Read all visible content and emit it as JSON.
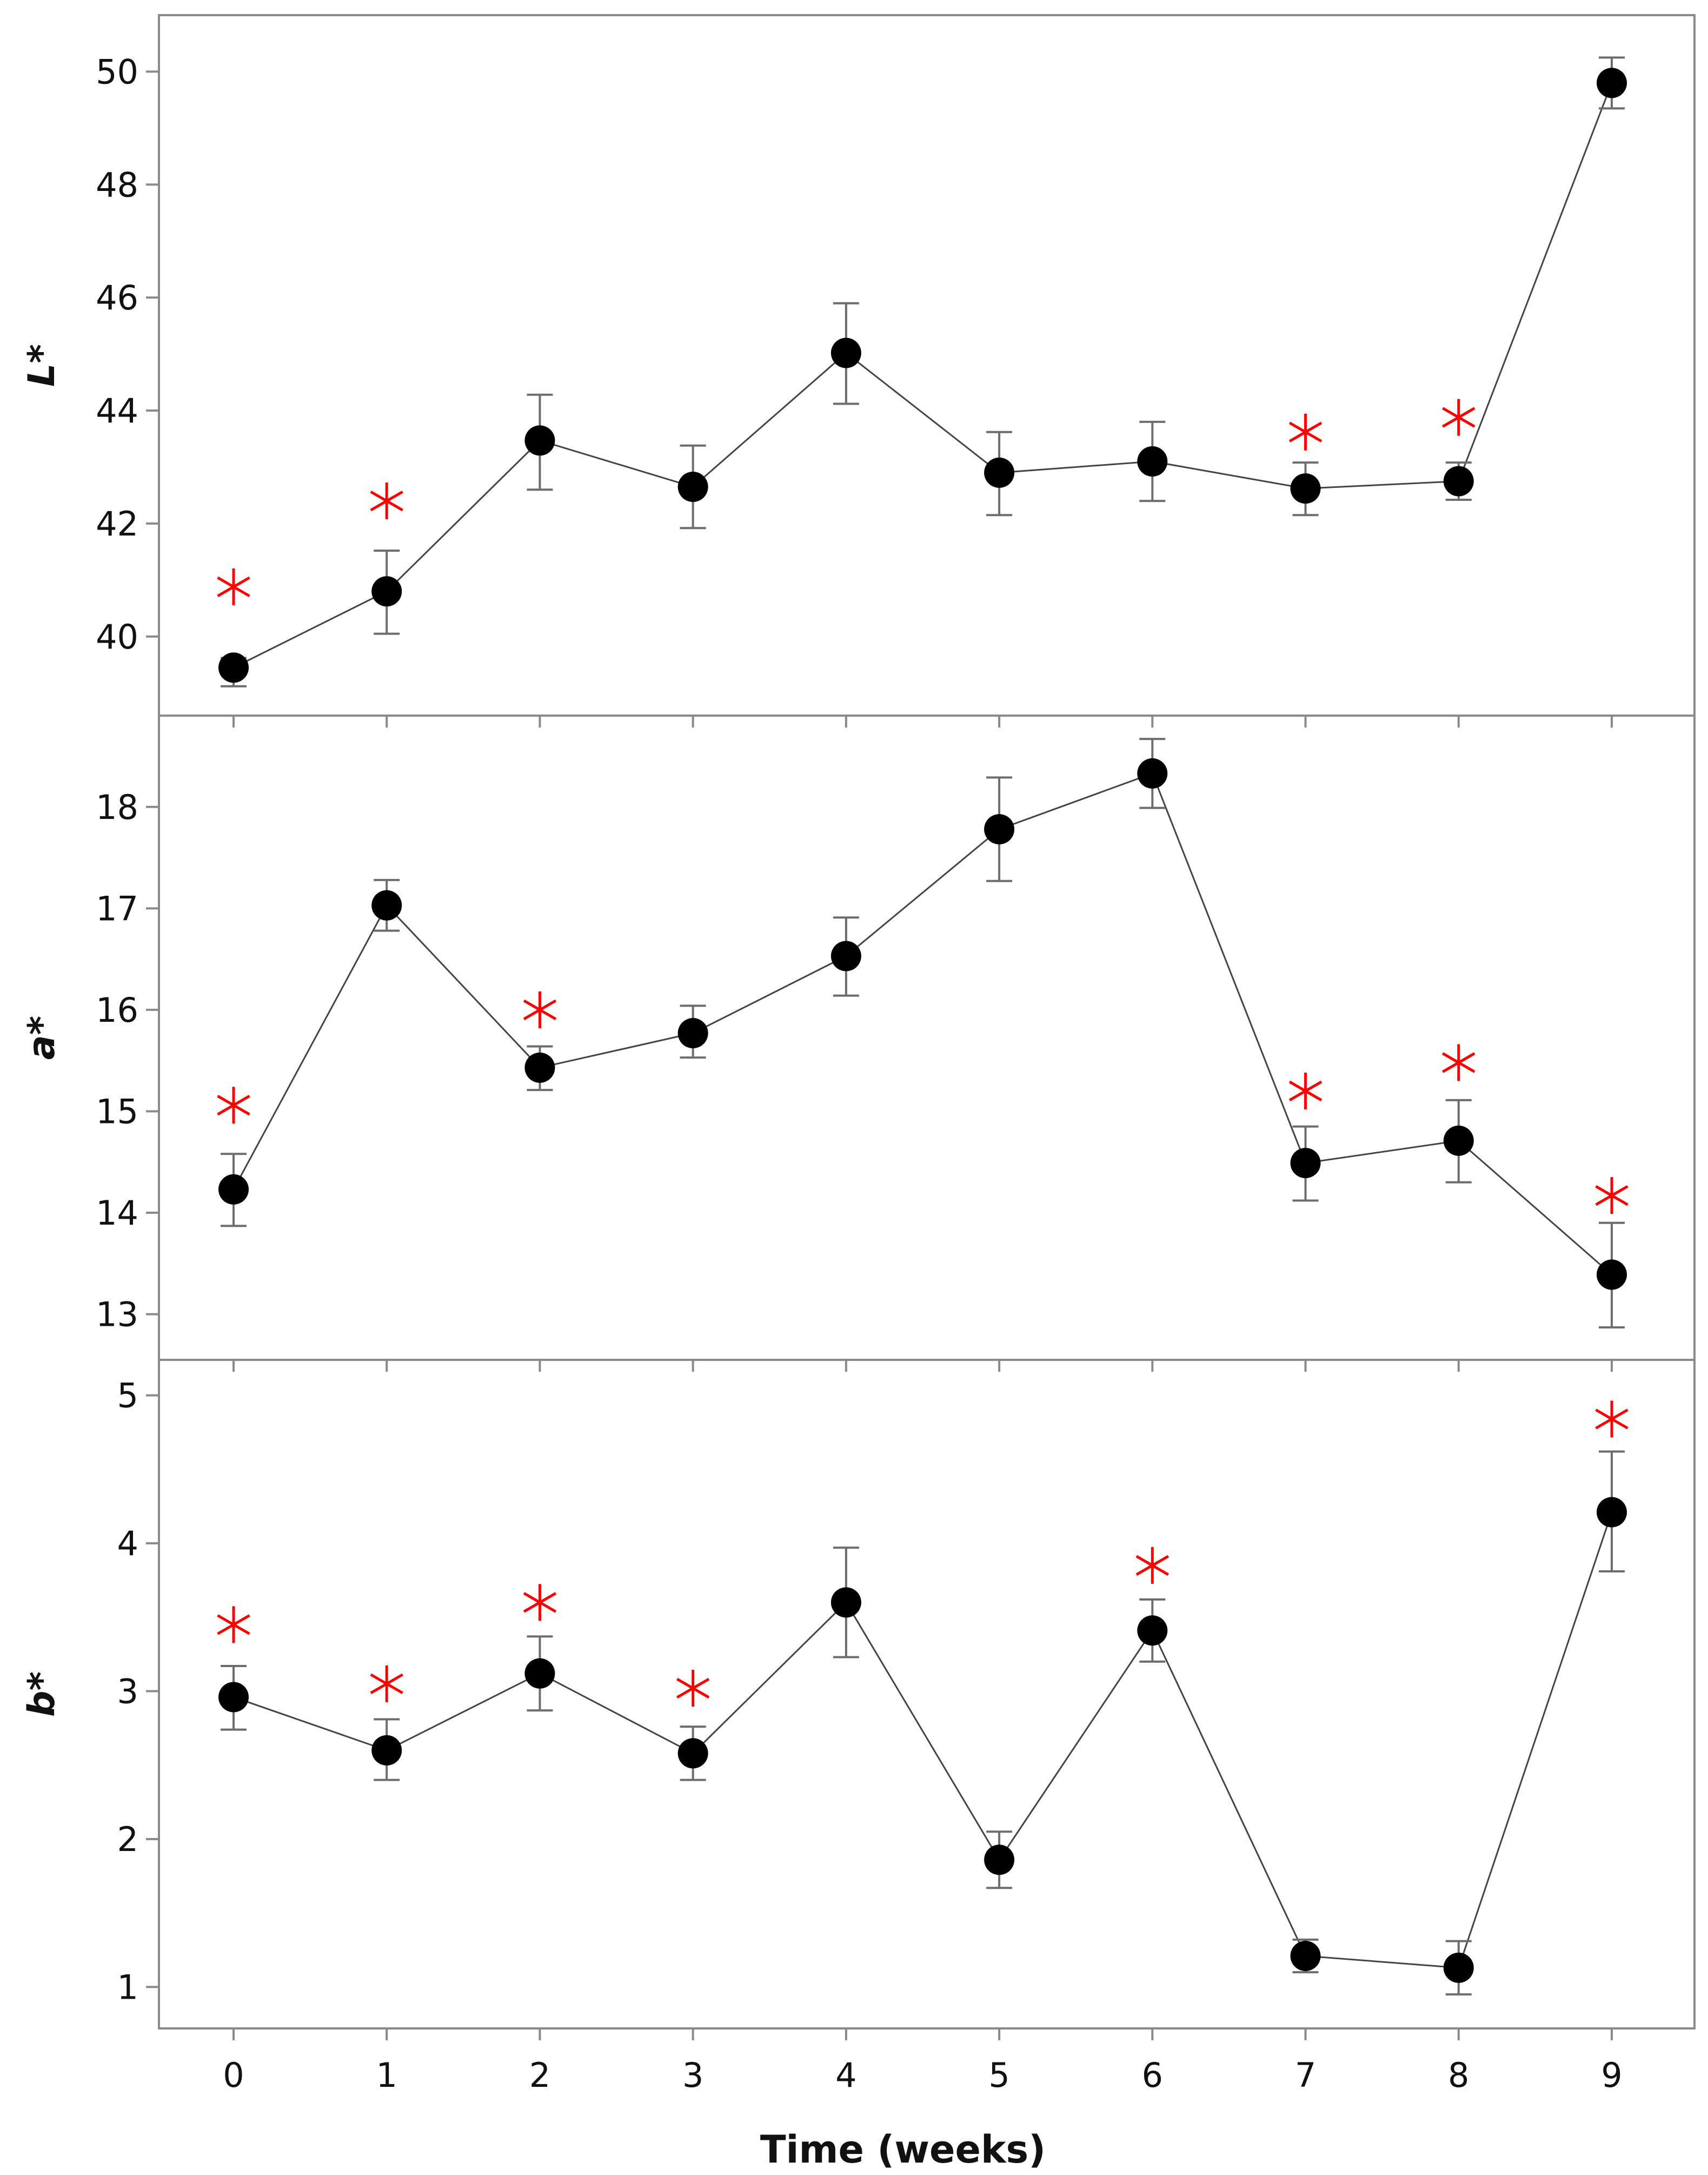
{
  "chart_data": [
    {
      "type": "scatter",
      "ylabel": "L*",
      "xlabel": "Time (weeks)",
      "x": [
        0,
        1,
        2,
        3,
        4,
        5,
        6,
        7,
        8,
        9
      ],
      "ylim": [
        38.6,
        51.0
      ],
      "yticks": [
        40,
        42,
        44,
        46,
        48,
        50
      ],
      "grid": false,
      "series": [
        {
          "values": [
            39.45,
            40.8,
            43.47,
            42.65,
            45.02,
            42.9,
            43.1,
            42.62,
            42.75,
            49.8
          ],
          "error_low": [
            39.12,
            40.05,
            42.6,
            41.92,
            44.12,
            42.15,
            42.4,
            42.15,
            42.42,
            49.35
          ],
          "error_high": [
            39.62,
            41.52,
            44.28,
            43.38,
            45.9,
            43.62,
            43.8,
            43.08,
            43.08,
            50.25
          ]
        }
      ],
      "significance_markers": {
        "symbol": "*",
        "color": "#ff0000",
        "x": [
          0,
          1,
          7,
          8
        ],
        "y": [
          40.88,
          42.4,
          43.62,
          43.88
        ]
      }
    },
    {
      "type": "scatter",
      "ylabel": "a*",
      "xlabel": "Time (weeks)",
      "x": [
        0,
        1,
        2,
        3,
        4,
        5,
        6,
        7,
        8,
        9
      ],
      "ylim": [
        12.55,
        18.9
      ],
      "yticks": [
        13,
        14,
        15,
        16,
        17,
        18
      ],
      "grid": false,
      "series": [
        {
          "values": [
            14.23,
            17.03,
            15.43,
            15.77,
            16.53,
            17.78,
            18.33,
            14.49,
            14.71,
            13.39
          ],
          "error_low": [
            13.87,
            16.78,
            15.21,
            15.53,
            16.14,
            17.27,
            17.99,
            14.12,
            14.3,
            12.87
          ],
          "error_high": [
            14.58,
            17.28,
            15.64,
            16.04,
            16.91,
            18.29,
            18.67,
            14.85,
            15.11,
            13.9
          ]
        }
      ],
      "significance_markers": {
        "symbol": "*",
        "color": "#ff0000",
        "x": [
          0,
          2,
          7,
          8,
          9
        ],
        "y": [
          15.06,
          16.0,
          15.2,
          15.48,
          14.17
        ]
      }
    },
    {
      "type": "scatter",
      "ylabel": "b*",
      "xlabel": "Time (weeks)",
      "x": [
        0,
        1,
        2,
        3,
        4,
        5,
        6,
        7,
        8,
        9
      ],
      "ylim": [
        0.72,
        5.24
      ],
      "yticks": [
        1,
        2,
        3,
        4,
        5
      ],
      "grid": false,
      "series": [
        {
          "values": [
            2.96,
            2.6,
            3.12,
            2.58,
            3.6,
            1.86,
            3.41,
            1.21,
            1.13,
            4.21
          ],
          "error_low": [
            2.74,
            2.4,
            2.87,
            2.4,
            3.23,
            1.67,
            3.2,
            1.1,
            0.95,
            3.81
          ],
          "error_high": [
            3.17,
            2.81,
            3.37,
            2.76,
            3.97,
            2.05,
            3.62,
            1.32,
            1.31,
            4.62
          ]
        }
      ],
      "significance_markers": {
        "symbol": "*",
        "color": "#ff0000",
        "x": [
          0,
          1,
          2,
          3,
          6,
          9
        ],
        "y": [
          3.45,
          3.05,
          3.6,
          3.02,
          3.85,
          4.84
        ]
      }
    }
  ],
  "x_axis": {
    "tick_labels": [
      "0",
      "1",
      "2",
      "3",
      "4",
      "5",
      "6",
      "7",
      "8",
      "9"
    ],
    "title": "Time (weeks)"
  },
  "colors": {
    "points": "#000000",
    "line": "#444444",
    "error_bars": "#6d6d6d",
    "significance": "#ff0000",
    "frame": "#8a8a8a"
  }
}
